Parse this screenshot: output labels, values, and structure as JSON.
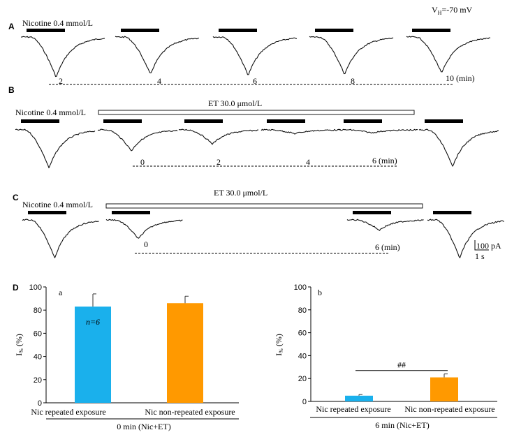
{
  "header": {
    "vh_label": "VH=-70 mV",
    "vh_prefix": "V",
    "vh_sub": "H",
    "vh_value": "=-70 mV"
  },
  "panel_a": {
    "letter": "A",
    "drug_label": "Nicotine 0.4 mmol/L",
    "time_labels": [
      "2",
      "4",
      "6",
      "8",
      "10 (min)"
    ],
    "trace_depths": [
      1.0,
      0.93,
      0.95,
      0.93,
      0.9
    ]
  },
  "panel_b": {
    "letter": "B",
    "drug_label": "Nicotine 0.4 mmol/L",
    "et_label": "ET 30.0 μmol/L",
    "time_labels": [
      "0",
      "2",
      "4",
      "6 (min)"
    ],
    "trace_depths": [
      1.0,
      0.55,
      0.37,
      0.1,
      0.08,
      0.95
    ]
  },
  "panel_c": {
    "letter": "C",
    "drug_label": "Nicotine 0.4 mmol/L",
    "et_label": "ET 30.0 μmol/L",
    "time_labels": [
      "0",
      "6 (min)"
    ],
    "trace_depths": [
      1.0,
      0.5,
      0.27,
      1.0
    ],
    "scale_current": "100 pA",
    "scale_time": "1 s"
  },
  "panel_d": {
    "letter": "D",
    "chart_data": [
      {
        "type": "bar",
        "sublabel": "a",
        "categories": [
          "Nic repeated exposure",
          "Nic non-repeated exposure"
        ],
        "values": [
          83,
          86
        ],
        "errors": [
          11,
          6
        ],
        "colors": [
          "#1ab0ec",
          "#ff9900"
        ],
        "annotation": "n=6",
        "ylabel": "I% (%)",
        "ylabel_main": "I",
        "ylabel_unit": " (%)",
        "ylim": [
          0,
          100
        ],
        "yticks": [
          "0",
          "20",
          "40",
          "60",
          "80",
          "100"
        ],
        "xlabel": "0 min (Nic+ET)"
      },
      {
        "type": "bar",
        "sublabel": "b",
        "categories": [
          "Nic repeated exposure",
          "Nic non-repeated exposure"
        ],
        "values": [
          5,
          21
        ],
        "errors": [
          1,
          3
        ],
        "colors": [
          "#1ab0ec",
          "#ff9900"
        ],
        "significance": "##",
        "ylabel": "I% (%)",
        "ylabel_main": "I",
        "ylabel_unit": " (%)",
        "ylim": [
          0,
          100
        ],
        "yticks": [
          "0",
          "20",
          "40",
          "60",
          "80",
          "100"
        ],
        "xlabel": "6 min (Nic+ET)"
      }
    ]
  }
}
